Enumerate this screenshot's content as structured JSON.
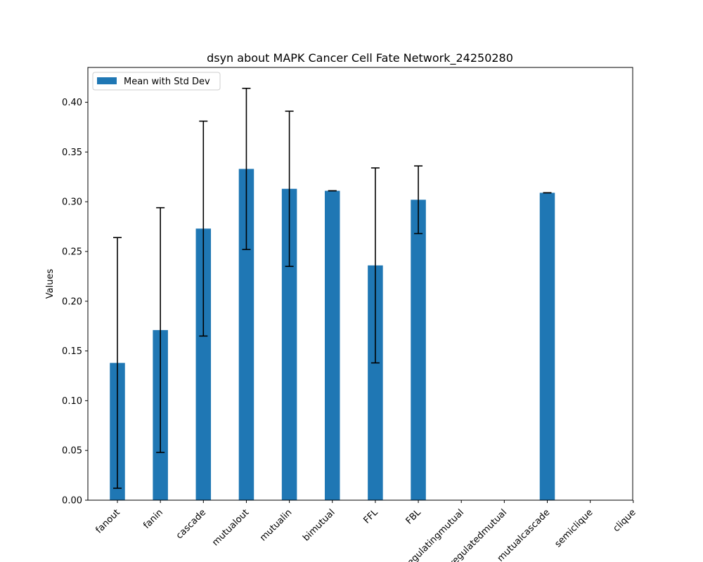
{
  "chart_data": {
    "type": "bar",
    "title": "dsyn about MAPK Cancer Cell Fate Network_24250280",
    "xlabel": "",
    "ylabel": "Values",
    "ylim": [
      0,
      0.435
    ],
    "yticks": [
      0.0,
      0.05,
      0.1,
      0.15,
      0.2,
      0.25,
      0.3,
      0.35,
      0.4
    ],
    "ytick_labels": [
      "0.00",
      "0.05",
      "0.10",
      "0.15",
      "0.20",
      "0.25",
      "0.30",
      "0.35",
      "0.40"
    ],
    "categories": [
      "fanout",
      "fanin",
      "cascade",
      "mutualout",
      "mutualin",
      "bimutual",
      "FFL",
      "FBL",
      "regulatingmutual",
      "regulatedmutual",
      "mutualcascade",
      "semiclique",
      "clique"
    ],
    "series": [
      {
        "name": "Mean with Std Dev",
        "color": "#1f77b4",
        "values": [
          0.138,
          0.171,
          0.273,
          0.333,
          0.313,
          0.311,
          0.236,
          0.302,
          0,
          0,
          0.309,
          0,
          0
        ],
        "errors": [
          0.126,
          0.123,
          0.108,
          0.081,
          0.078,
          0.0,
          0.098,
          0.034,
          0,
          0,
          0.0,
          0,
          0
        ]
      }
    ],
    "legend_position": "top-left",
    "grid": false
  }
}
